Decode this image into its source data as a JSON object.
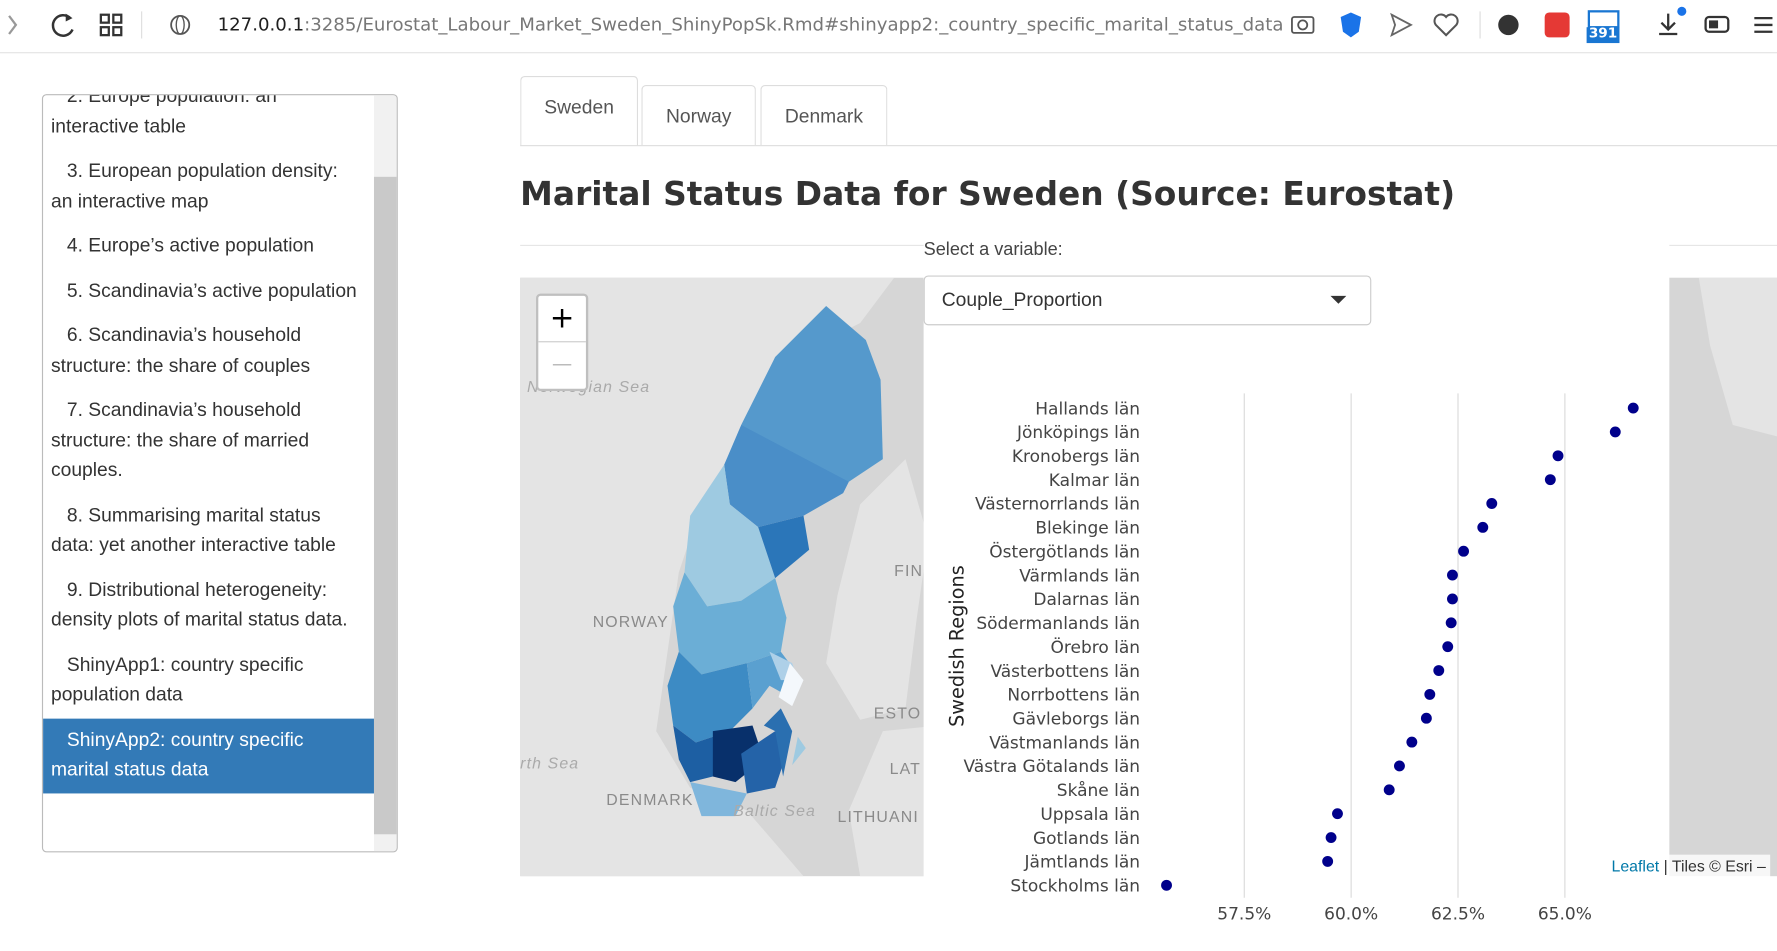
{
  "browser": {
    "url_host": "127.0.0.1",
    "url_rest": ":3285/Eurostat_Labour_Market_Sweden_ShinyPopSk.Rmd#shinyapp2:_country_specific_marital_status_data",
    "badge": "391"
  },
  "toc": [
    "2. Europe population: an interactive table",
    "3. European population density: an interactive map",
    "4. Europe’s active population",
    "5. Scandinavia’s active population",
    "6. Scandinavia’s household structure: the share of couples",
    "7. Scandinavia’s household structure: the share of married couples.",
    "8. Summarising marital status data: yet another interactive table",
    "9. Distributional heterogeneity: density plots of marital status data.",
    "ShinyApp1: country specific population data",
    "ShinyApp2: country specific marital status data"
  ],
  "toc_active": 9,
  "tabs": [
    "Sweden",
    "Norway",
    "Denmark"
  ],
  "heading": "Marital Status Data for Sweden (Source: Eurostat)",
  "select_label": "Select a variable:",
  "select_value": "Couple_Proportion",
  "map": {
    "zoom_in": "+",
    "zoom_out": "—",
    "labels": [
      "Norwegian Sea",
      "NORWAY",
      "FIN",
      "ESTO",
      "LAT",
      "rth Sea",
      "DENMARK",
      "Baltic Sea",
      "LITHUANI"
    ],
    "attribution_link": "Leaflet",
    "attribution_text": "| Tiles © Esri –"
  },
  "chart_data": {
    "type": "dot",
    "y_label": "Swedish Regions",
    "color": "#00008b",
    "grid": true,
    "categories": [
      "Hallands län",
      "Jönköpings län",
      "Kronobergs län",
      "Kalmar län",
      "Västernorrlands län",
      "Blekinge län",
      "Östergötlands län",
      "Värmlands län",
      "Dalarnas län",
      "Södermanlands län",
      "Örebro län",
      "Västerbottens län",
      "Norrbottens län",
      "Gävleborgs län",
      "Västmanlands län",
      "Västra Götalands län",
      "Skåne län",
      "Uppsala län",
      "Gotlands län",
      "Jämtlands län",
      "Stockholms län"
    ],
    "values": [
      66.6,
      66.18,
      64.84,
      64.66,
      63.29,
      63.08,
      62.63,
      62.37,
      62.37,
      62.34,
      62.26,
      62.05,
      61.84,
      61.76,
      61.42,
      61.13,
      60.89,
      59.68,
      59.53,
      59.45,
      55.68
    ],
    "xlim": [
      55.3,
      67.1
    ],
    "xticks": [
      {
        "value": 57.5,
        "label": "57.5%"
      },
      {
        "value": 60,
        "label": "60.0%"
      },
      {
        "value": 62.5,
        "label": "62.5%"
      },
      {
        "value": 65,
        "label": "65.0%"
      }
    ]
  }
}
